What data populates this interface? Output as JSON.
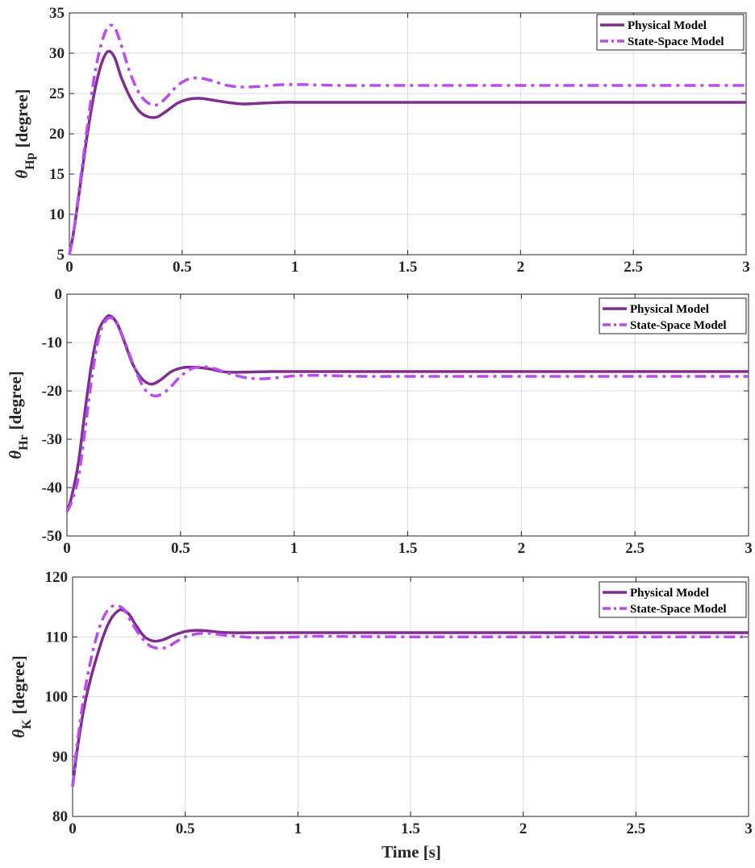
{
  "colors": {
    "physical": "#7E2F8E",
    "statespace": "#B94CF0"
  },
  "xlabel": "Time [s]",
  "legend": {
    "items": [
      "Physical Model",
      "State-Space Model"
    ],
    "placement": "top-right"
  },
  "chart_data": [
    {
      "type": "line",
      "ylabel": {
        "symbol": "θ",
        "sub": "Hp",
        "unit": "[degree]"
      },
      "xlim": [
        0,
        3
      ],
      "ylim": [
        5,
        35
      ],
      "xticks": [
        0,
        0.5,
        1,
        1.5,
        2,
        2.5,
        3
      ],
      "xtick_labels": [
        "0",
        "0.5",
        "1",
        "1.5",
        "2",
        "2.5",
        "3"
      ],
      "yticks": [
        5,
        10,
        15,
        20,
        25,
        30,
        35
      ],
      "ytick_labels": [
        "5",
        "10",
        "15",
        "20",
        "25",
        "30",
        "35"
      ],
      "grid": true,
      "series": [
        {
          "name": "Physical Model",
          "style": "solid",
          "x": [
            0,
            0.02,
            0.05,
            0.08,
            0.11,
            0.14,
            0.17,
            0.2,
            0.23,
            0.27,
            0.31,
            0.35,
            0.39,
            0.43,
            0.48,
            0.53,
            0.58,
            0.63,
            0.7,
            0.77,
            0.85,
            0.95,
            1.05,
            1.2,
            1.5,
            2,
            2.5,
            3
          ],
          "y": [
            5,
            8,
            14,
            20,
            25,
            28.5,
            30.2,
            29.5,
            27,
            24.5,
            22.8,
            22.1,
            22.1,
            22.8,
            23.8,
            24.3,
            24.4,
            24.2,
            23.9,
            23.7,
            23.8,
            23.9,
            23.9,
            23.9,
            23.9,
            23.9,
            23.9,
            23.9
          ]
        },
        {
          "name": "State-Space Model",
          "style": "dashdot",
          "x": [
            0,
            0.02,
            0.05,
            0.08,
            0.11,
            0.14,
            0.17,
            0.2,
            0.23,
            0.27,
            0.31,
            0.35,
            0.39,
            0.43,
            0.48,
            0.53,
            0.58,
            0.63,
            0.7,
            0.77,
            0.85,
            0.95,
            1.05,
            1.2,
            1.5,
            2,
            2.5,
            3
          ],
          "y": [
            5,
            8,
            14.5,
            21,
            27,
            31,
            33.2,
            33.2,
            31,
            27.5,
            25,
            23.8,
            23.6,
            24.5,
            26,
            26.8,
            26.9,
            26.6,
            26,
            25.8,
            25.9,
            26.1,
            26.1,
            26.0,
            26.0,
            26.0,
            26.0,
            26.0
          ]
        }
      ]
    },
    {
      "type": "line",
      "ylabel": {
        "symbol": "θ",
        "sub": "Hr",
        "unit": "[degree]"
      },
      "xlim": [
        0,
        3
      ],
      "ylim": [
        -50,
        0
      ],
      "xticks": [
        0,
        0.5,
        1,
        1.5,
        2,
        2.5,
        3
      ],
      "xtick_labels": [
        "0",
        "0.5",
        "1",
        "1.5",
        "2",
        "2.5",
        "3"
      ],
      "yticks": [
        -50,
        -40,
        -30,
        -20,
        -10,
        0
      ],
      "ytick_labels": [
        "-50",
        "-40",
        "-30",
        "-20",
        "-10",
        "0"
      ],
      "grid": true,
      "series": [
        {
          "name": "Physical Model",
          "style": "solid",
          "x": [
            0,
            0.02,
            0.05,
            0.08,
            0.11,
            0.14,
            0.17,
            0.19,
            0.22,
            0.25,
            0.29,
            0.33,
            0.37,
            0.41,
            0.46,
            0.51,
            0.56,
            0.62,
            0.7,
            0.8,
            0.9,
            1.0,
            1.2,
            1.5,
            2,
            2.5,
            3
          ],
          "y": [
            -45,
            -42,
            -35,
            -24,
            -14,
            -7.5,
            -5,
            -4.5,
            -6,
            -9.5,
            -14.5,
            -17.5,
            -18.6,
            -17.8,
            -16,
            -15.2,
            -15.1,
            -15.4,
            -16.1,
            -16.1,
            -16.0,
            -16,
            -16,
            -16,
            -16,
            -16,
            -16
          ]
        },
        {
          "name": "State-Space Model",
          "style": "dashdot",
          "x": [
            0,
            0.02,
            0.05,
            0.08,
            0.11,
            0.14,
            0.17,
            0.2,
            0.23,
            0.26,
            0.3,
            0.34,
            0.38,
            0.42,
            0.46,
            0.5,
            0.55,
            0.6,
            0.65,
            0.7,
            0.78,
            0.85,
            0.92,
            1.0,
            1.1,
            1.3,
            1.5,
            2,
            2.5,
            3
          ],
          "y": [
            -45,
            -43,
            -38,
            -28,
            -17,
            -9,
            -5.5,
            -5,
            -7,
            -10.5,
            -15.5,
            -19.5,
            -21,
            -20.6,
            -19,
            -17,
            -15.4,
            -15,
            -15.4,
            -16.2,
            -17.2,
            -17.5,
            -17.3,
            -16.9,
            -16.8,
            -17,
            -17,
            -17,
            -17,
            -17
          ]
        }
      ]
    },
    {
      "type": "line",
      "ylabel": {
        "symbol": "θ",
        "sub": "K",
        "unit": "[degree]"
      },
      "xlim": [
        0,
        3
      ],
      "ylim": [
        80,
        120
      ],
      "xticks": [
        0,
        0.5,
        1,
        1.5,
        2,
        2.5,
        3
      ],
      "xtick_labels": [
        "0",
        "0.5",
        "1",
        "1.5",
        "2",
        "2.5",
        "3"
      ],
      "yticks": [
        80,
        90,
        100,
        110,
        120
      ],
      "ytick_labels": [
        "80",
        "90",
        "100",
        "110",
        "120"
      ],
      "grid": true,
      "series": [
        {
          "name": "Physical Model",
          "style": "solid",
          "x": [
            0,
            0.02,
            0.05,
            0.08,
            0.11,
            0.14,
            0.17,
            0.2,
            0.22,
            0.25,
            0.28,
            0.32,
            0.36,
            0.4,
            0.45,
            0.5,
            0.55,
            0.6,
            0.65,
            0.7,
            0.8,
            0.9,
            1,
            1.5,
            2,
            2.5,
            3
          ],
          "y": [
            85,
            91,
            98,
            103,
            107,
            110.5,
            113,
            114.3,
            114.5,
            113.8,
            112,
            110,
            109.3,
            109.5,
            110.3,
            110.9,
            111.1,
            111.0,
            110.8,
            110.7,
            110.7,
            110.7,
            110.7,
            110.7,
            110.7,
            110.7,
            110.7
          ]
        },
        {
          "name": "State-Space Model",
          "style": "dashdot",
          "x": [
            0,
            0.02,
            0.05,
            0.08,
            0.11,
            0.14,
            0.17,
            0.2,
            0.23,
            0.26,
            0.3,
            0.34,
            0.38,
            0.42,
            0.46,
            0.5,
            0.55,
            0.6,
            0.65,
            0.7,
            0.8,
            0.9,
            1,
            1.1,
            1.5,
            2,
            2.5,
            3
          ],
          "y": [
            85,
            92,
            100,
            106,
            110.5,
            113.5,
            115,
            115.2,
            114.5,
            112.5,
            110.2,
            108.6,
            108.1,
            108.3,
            109.2,
            110.0,
            110.5,
            110.6,
            110.4,
            110.2,
            109.9,
            109.9,
            110.0,
            110.1,
            110,
            110,
            110,
            110
          ]
        }
      ]
    }
  ]
}
